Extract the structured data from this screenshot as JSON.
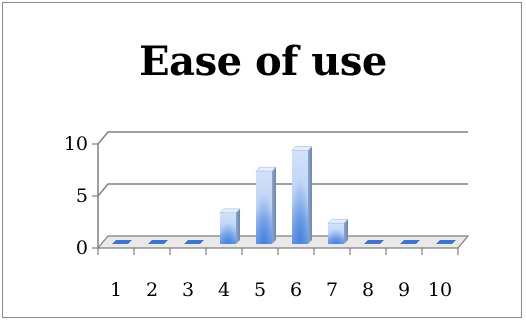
{
  "chart_data": {
    "type": "bar",
    "title": "Ease of use",
    "categories": [
      "1",
      "2",
      "3",
      "4",
      "5",
      "6",
      "7",
      "8",
      "9",
      "10"
    ],
    "values": [
      0,
      0,
      0,
      3,
      7,
      9,
      2,
      0,
      0,
      0
    ],
    "ylim": [
      0,
      10
    ],
    "yticks": [
      "0",
      "5",
      "10"
    ],
    "grid": true,
    "legend": "none",
    "bar_color": "#7aa6e8",
    "bar_light": "#c9dcf8",
    "axis_color": "#808080"
  }
}
